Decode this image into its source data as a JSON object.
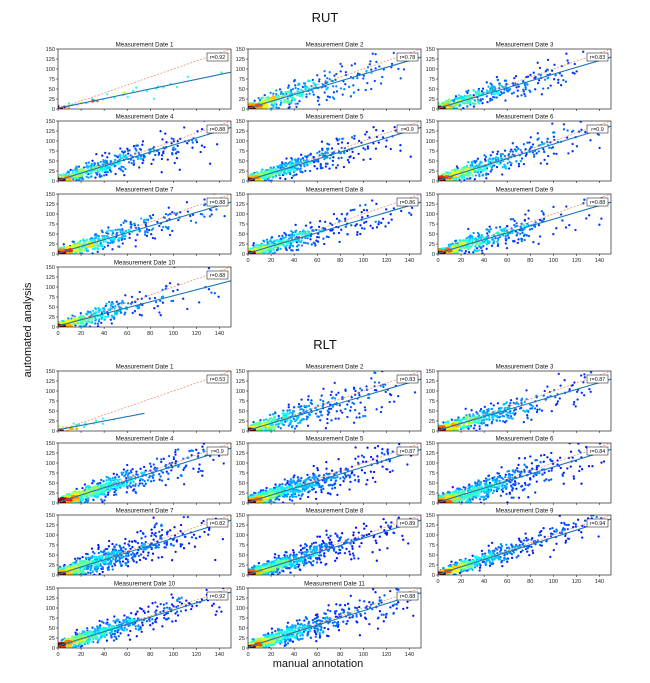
{
  "figure": {
    "xlabel": "manual annotation",
    "ylabel": "automated analysis"
  },
  "chart_data": [
    {
      "type": "scatter",
      "section": "RUT",
      "xlim": [
        0,
        150
      ],
      "ylim": [
        0,
        150
      ],
      "x_ticks": [
        0,
        20,
        40,
        60,
        80,
        100,
        120,
        140
      ],
      "y_ticks": [
        0,
        25,
        50,
        75,
        100,
        125,
        150
      ],
      "x_tick_labels_shown_on": [
        "Measurement Date 8",
        "Measurement Date 9",
        "Measurement Date 10"
      ],
      "panels": [
        {
          "title": "Measurement Date 1",
          "r_label": "r=0.92",
          "r": 0.92,
          "n_points": 40,
          "slope": 0.6,
          "intercept": 2,
          "spread": 8
        },
        {
          "title": "Measurement Date 2",
          "r_label": "r=0.78",
          "r": 0.78,
          "n_points": 420,
          "slope": 0.85,
          "intercept": 2,
          "spread": 18
        },
        {
          "title": "Measurement Date 3",
          "r_label": "r=0.83",
          "r": 0.83,
          "n_points": 420,
          "slope": 0.85,
          "intercept": 2,
          "spread": 16
        },
        {
          "title": "Measurement Date 4",
          "r_label": "r=0.88",
          "r": 0.88,
          "n_points": 520,
          "slope": 0.88,
          "intercept": 2,
          "spread": 15
        },
        {
          "title": "Measurement Date 5",
          "r_label": "r=0.9",
          "r": 0.9,
          "n_points": 520,
          "slope": 0.88,
          "intercept": 2,
          "spread": 14
        },
        {
          "title": "Measurement Date 6",
          "r_label": "r=0.9",
          "r": 0.9,
          "n_points": 520,
          "slope": 0.9,
          "intercept": 2,
          "spread": 14
        },
        {
          "title": "Measurement Date 7",
          "r_label": "r=0.88",
          "r": 0.88,
          "n_points": 520,
          "slope": 0.85,
          "intercept": 2,
          "spread": 15
        },
        {
          "title": "Measurement Date 8",
          "r_label": "r=0.86",
          "r": 0.86,
          "n_points": 500,
          "slope": 0.85,
          "intercept": 2,
          "spread": 16
        },
        {
          "title": "Measurement Date 9",
          "r_label": "r=0.88",
          "r": 0.88,
          "n_points": 500,
          "slope": 0.85,
          "intercept": 2,
          "spread": 15
        },
        {
          "title": "Measurement Date 10",
          "r_label": "r=0.88",
          "r": 0.88,
          "n_points": 380,
          "slope": 0.75,
          "intercept": 3,
          "spread": 15
        }
      ]
    },
    {
      "type": "scatter",
      "section": "RLT",
      "xlim": [
        0,
        150
      ],
      "ylim": [
        0,
        150
      ],
      "x_ticks": [
        0,
        20,
        40,
        60,
        80,
        100,
        120,
        140
      ],
      "y_ticks": [
        0,
        25,
        50,
        75,
        100,
        125,
        150
      ],
      "x_tick_labels_shown_on": [
        "Measurement Date 9",
        "Measurement Date 10",
        "Measurement Date 11"
      ],
      "panels": [
        {
          "title": "Measurement Date 1",
          "r_label": "r=0.53",
          "r": 0.53,
          "n_points": 30,
          "slope": 0.55,
          "intercept": 3,
          "spread": 8,
          "x_max": 75
        },
        {
          "title": "Measurement Date 2",
          "r_label": "r=0.83",
          "r": 0.83,
          "n_points": 450,
          "slope": 0.85,
          "intercept": 2,
          "spread": 18
        },
        {
          "title": "Measurement Date 3",
          "r_label": "r=0.87",
          "r": 0.87,
          "n_points": 520,
          "slope": 0.85,
          "intercept": 2,
          "spread": 15
        },
        {
          "title": "Measurement Date 4",
          "r_label": "r=0.9",
          "r": 0.9,
          "n_points": 750,
          "slope": 0.9,
          "intercept": 2,
          "spread": 15
        },
        {
          "title": "Measurement Date 5",
          "r_label": "r=0.87",
          "r": 0.87,
          "n_points": 750,
          "slope": 0.88,
          "intercept": 2,
          "spread": 16
        },
        {
          "title": "Measurement Date 6",
          "r_label": "r=0.84",
          "r": 0.84,
          "n_points": 750,
          "slope": 0.88,
          "intercept": 2,
          "spread": 17
        },
        {
          "title": "Measurement Date 7",
          "r_label": "r=0.82",
          "r": 0.82,
          "n_points": 800,
          "slope": 0.9,
          "intercept": 2,
          "spread": 18
        },
        {
          "title": "Measurement Date 8",
          "r_label": "r=0.89",
          "r": 0.89,
          "n_points": 800,
          "slope": 0.9,
          "intercept": 2,
          "spread": 15
        },
        {
          "title": "Measurement Date 9",
          "r_label": "r=0.94",
          "r": 0.94,
          "n_points": 650,
          "slope": 0.92,
          "intercept": 2,
          "spread": 12
        },
        {
          "title": "Measurement Date 10",
          "r_label": "r=0.92",
          "r": 0.92,
          "n_points": 750,
          "slope": 0.9,
          "intercept": 5,
          "spread": 14
        },
        {
          "title": "Measurement Date 11",
          "r_label": "r=0.88",
          "r": 0.88,
          "n_points": 750,
          "slope": 0.9,
          "intercept": 3,
          "spread": 15
        }
      ]
    }
  ],
  "colors": {
    "fit_line": "#1f77b4",
    "identity_line": "#f08060",
    "point_low": "#1a1a8c",
    "point_high": "#d62020"
  }
}
